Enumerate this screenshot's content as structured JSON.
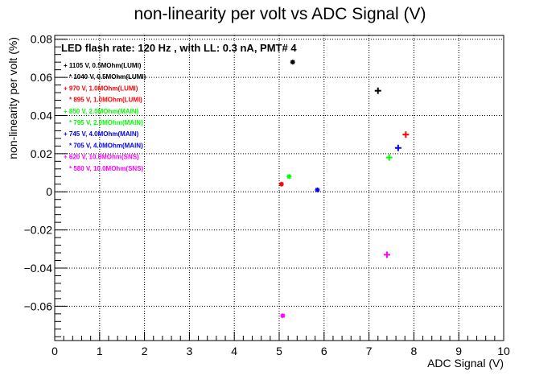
{
  "chart_data": {
    "type": "scatter",
    "title": "non-linearity per volt vs ADC Signal (V)",
    "xlabel": "ADC Signal (V)",
    "ylabel": "non-linearity per volt (%)",
    "xlim": [
      0,
      10
    ],
    "ylim": [
      -0.078,
      0.082
    ],
    "xticks": [
      0,
      1,
      2,
      3,
      4,
      5,
      6,
      7,
      8,
      9,
      10
    ],
    "xtick_labels": [
      "0",
      "1",
      "2",
      "3",
      "4",
      "5",
      "6",
      "7",
      "8",
      "9",
      "10"
    ],
    "yticks": [
      0.08,
      0.06,
      0.04,
      0.02,
      0,
      -0.02,
      -0.04,
      -0.06
    ],
    "ytick_labels": [
      "0.08",
      "0.06",
      "0.04",
      "0.02",
      "0",
      "−0.02",
      "−0.04",
      "−0.06"
    ],
    "grid": true,
    "legend_position": "top-left",
    "annotation": "LED flash rate: 120 Hz , with LL: 0.3 nA, PMT# 4",
    "series": [
      {
        "name": "1105 V, 0.5MOhm(LUMI)",
        "marker": "+",
        "color": "#000000",
        "points": [
          [
            7.2,
            0.053
          ]
        ]
      },
      {
        "name": "1040 V, 0.5MOhm(LUMI)",
        "marker": "*",
        "color": "#000000",
        "points": [
          [
            5.3,
            0.068
          ]
        ]
      },
      {
        "name": "970 V, 1.0MOhm(LUMI)",
        "marker": "+",
        "color": "#ff0000",
        "points": [
          [
            7.82,
            0.03
          ]
        ]
      },
      {
        "name": "895 V, 1.0MOhm(LUMI)",
        "marker": "*",
        "color": "#ff0000",
        "points": [
          [
            5.05,
            0.004
          ]
        ]
      },
      {
        "name": "850 V, 2.0MOhm(MAIN)",
        "marker": "+",
        "color": "#00ff00",
        "points": [
          [
            7.45,
            0.018
          ]
        ]
      },
      {
        "name": "795 V, 2.0MOhm(MAIN)",
        "marker": "*",
        "color": "#00ff00",
        "points": [
          [
            5.22,
            0.008
          ]
        ]
      },
      {
        "name": "745 V, 4.0MOhm(MAIN)",
        "marker": "+",
        "color": "#0000ff",
        "points": [
          [
            7.65,
            0.023
          ]
        ]
      },
      {
        "name": "705 V, 4.0MOhm(MAIN)",
        "marker": "*",
        "color": "#0000ff",
        "points": [
          [
            5.85,
            0.001
          ]
        ]
      },
      {
        "name": "620 V, 10.0MOhm(SNS)",
        "marker": "+",
        "color": "#ff00ff",
        "points": [
          [
            7.4,
            -0.033
          ]
        ]
      },
      {
        "name": "580 V, 10.0MOhm(SNS)",
        "marker": "*",
        "color": "#ff00ff",
        "points": [
          [
            5.08,
            -0.065
          ]
        ]
      }
    ]
  }
}
